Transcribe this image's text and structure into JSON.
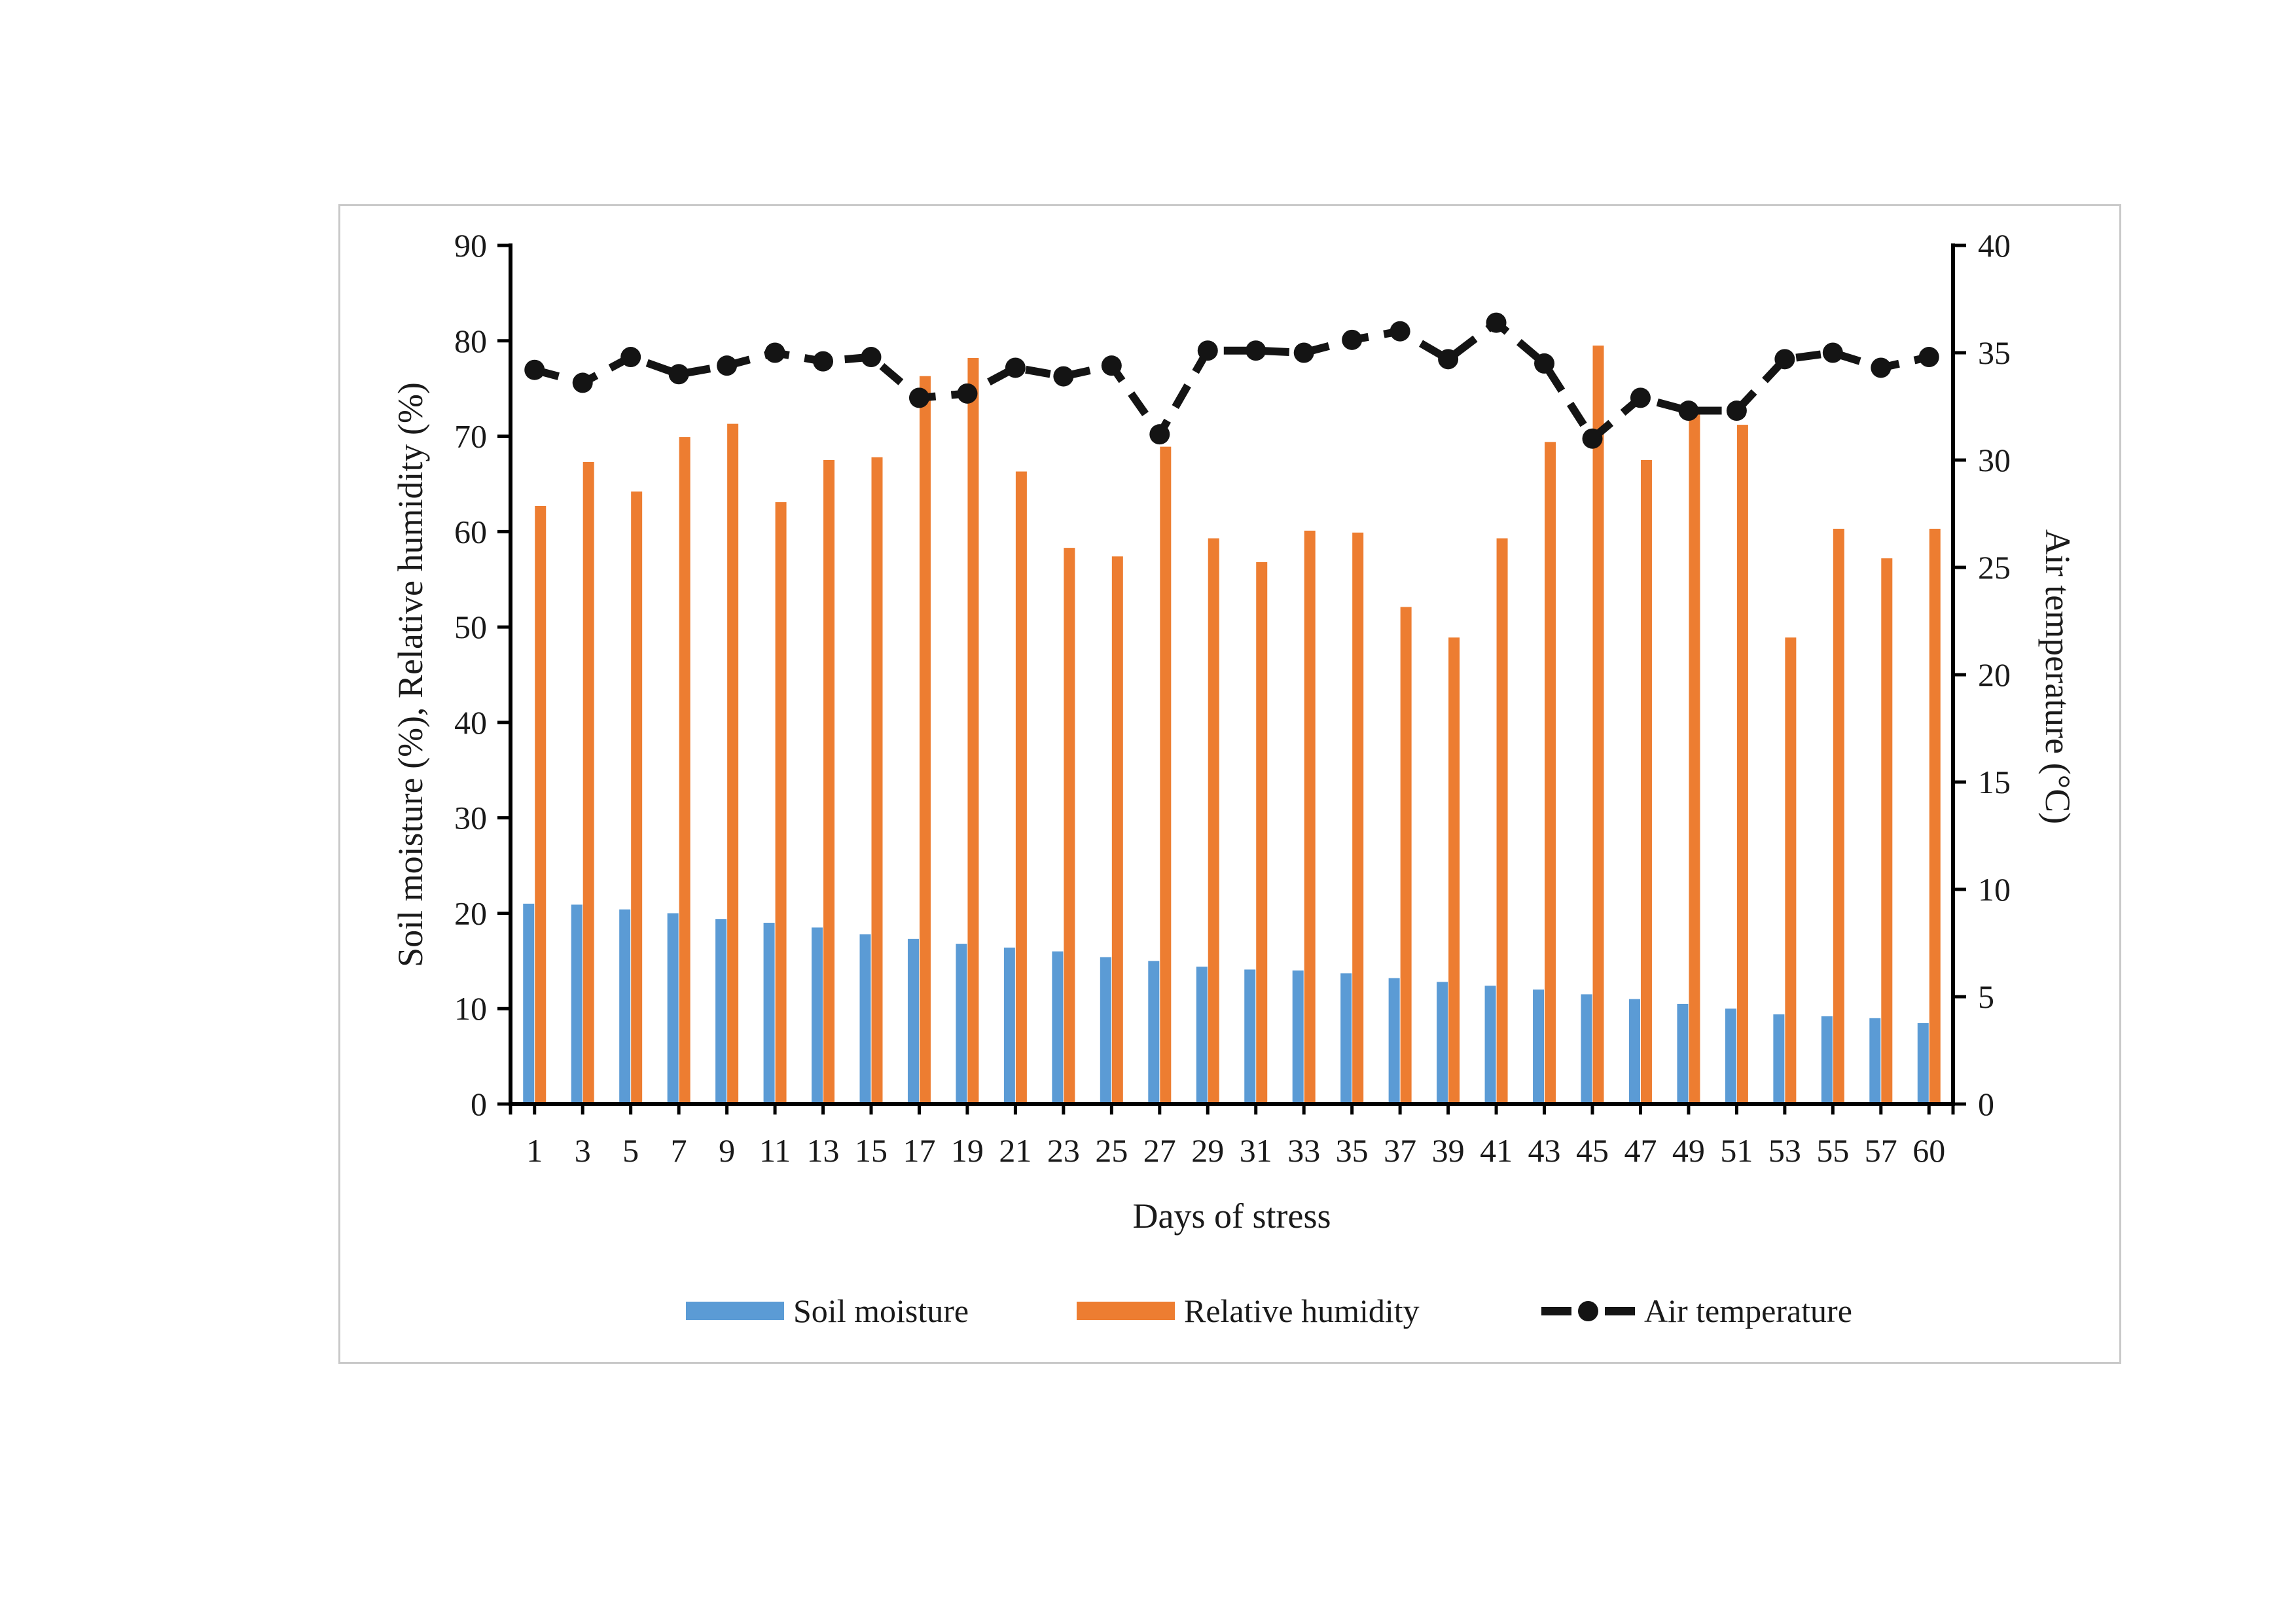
{
  "chart_data": {
    "type": "bar+line",
    "categories": [
      "1",
      "3",
      "5",
      "7",
      "9",
      "11",
      "13",
      "15",
      "17",
      "19",
      "21",
      "23",
      "25",
      "27",
      "29",
      "31",
      "33",
      "35",
      "37",
      "39",
      "41",
      "43",
      "45",
      "47",
      "49",
      "51",
      "53",
      "55",
      "57",
      "60"
    ],
    "series": [
      {
        "name": "Soil moisture",
        "type": "bar",
        "axis": "left",
        "color": "#5B9BD5",
        "values": [
          21.0,
          20.9,
          20.4,
          20.0,
          19.4,
          19.0,
          18.5,
          17.8,
          17.3,
          16.8,
          16.4,
          16.0,
          15.4,
          15.0,
          14.4,
          14.1,
          14.0,
          13.7,
          13.2,
          12.8,
          12.4,
          12.0,
          11.5,
          11.0,
          10.5,
          10.0,
          9.4,
          9.2,
          9.0,
          8.5
        ]
      },
      {
        "name": "Relative humidity",
        "type": "bar",
        "axis": "left",
        "color": "#ED7D31",
        "values": [
          62.7,
          67.3,
          64.2,
          69.9,
          71.3,
          63.1,
          67.5,
          67.8,
          76.3,
          78.2,
          66.3,
          58.3,
          57.4,
          68.9,
          59.3,
          56.8,
          60.1,
          59.9,
          52.1,
          48.9,
          59.3,
          69.4,
          79.5,
          67.5,
          72.3,
          71.2,
          48.9,
          60.3,
          57.2,
          60.3
        ]
      },
      {
        "name": "Air temperature",
        "type": "line",
        "axis": "right",
        "color": "#141414",
        "line_style": "dashed",
        "marker": "filled-circle",
        "values": [
          34.2,
          33.6,
          34.8,
          34.0,
          34.4,
          35.0,
          34.6,
          34.8,
          32.9,
          33.1,
          34.3,
          33.9,
          34.4,
          31.2,
          35.1,
          35.1,
          35.0,
          35.6,
          36.0,
          34.7,
          36.4,
          34.5,
          31.0,
          32.9,
          32.3,
          32.3,
          34.7,
          35.0,
          34.3,
          34.8
        ]
      }
    ],
    "axes": {
      "left": {
        "label": "Soil moisture (%), Relative humidity (%)",
        "min": 0,
        "max": 90,
        "step": 10
      },
      "right": {
        "label": "Air temperature (°C)",
        "min": 0,
        "max": 40,
        "step": 5
      },
      "x": {
        "label": "Days of stress"
      }
    },
    "legend": {
      "position": "bottom"
    },
    "grid": false,
    "frame_border_color": "#c9c9c9",
    "axis_color": "#000000"
  }
}
